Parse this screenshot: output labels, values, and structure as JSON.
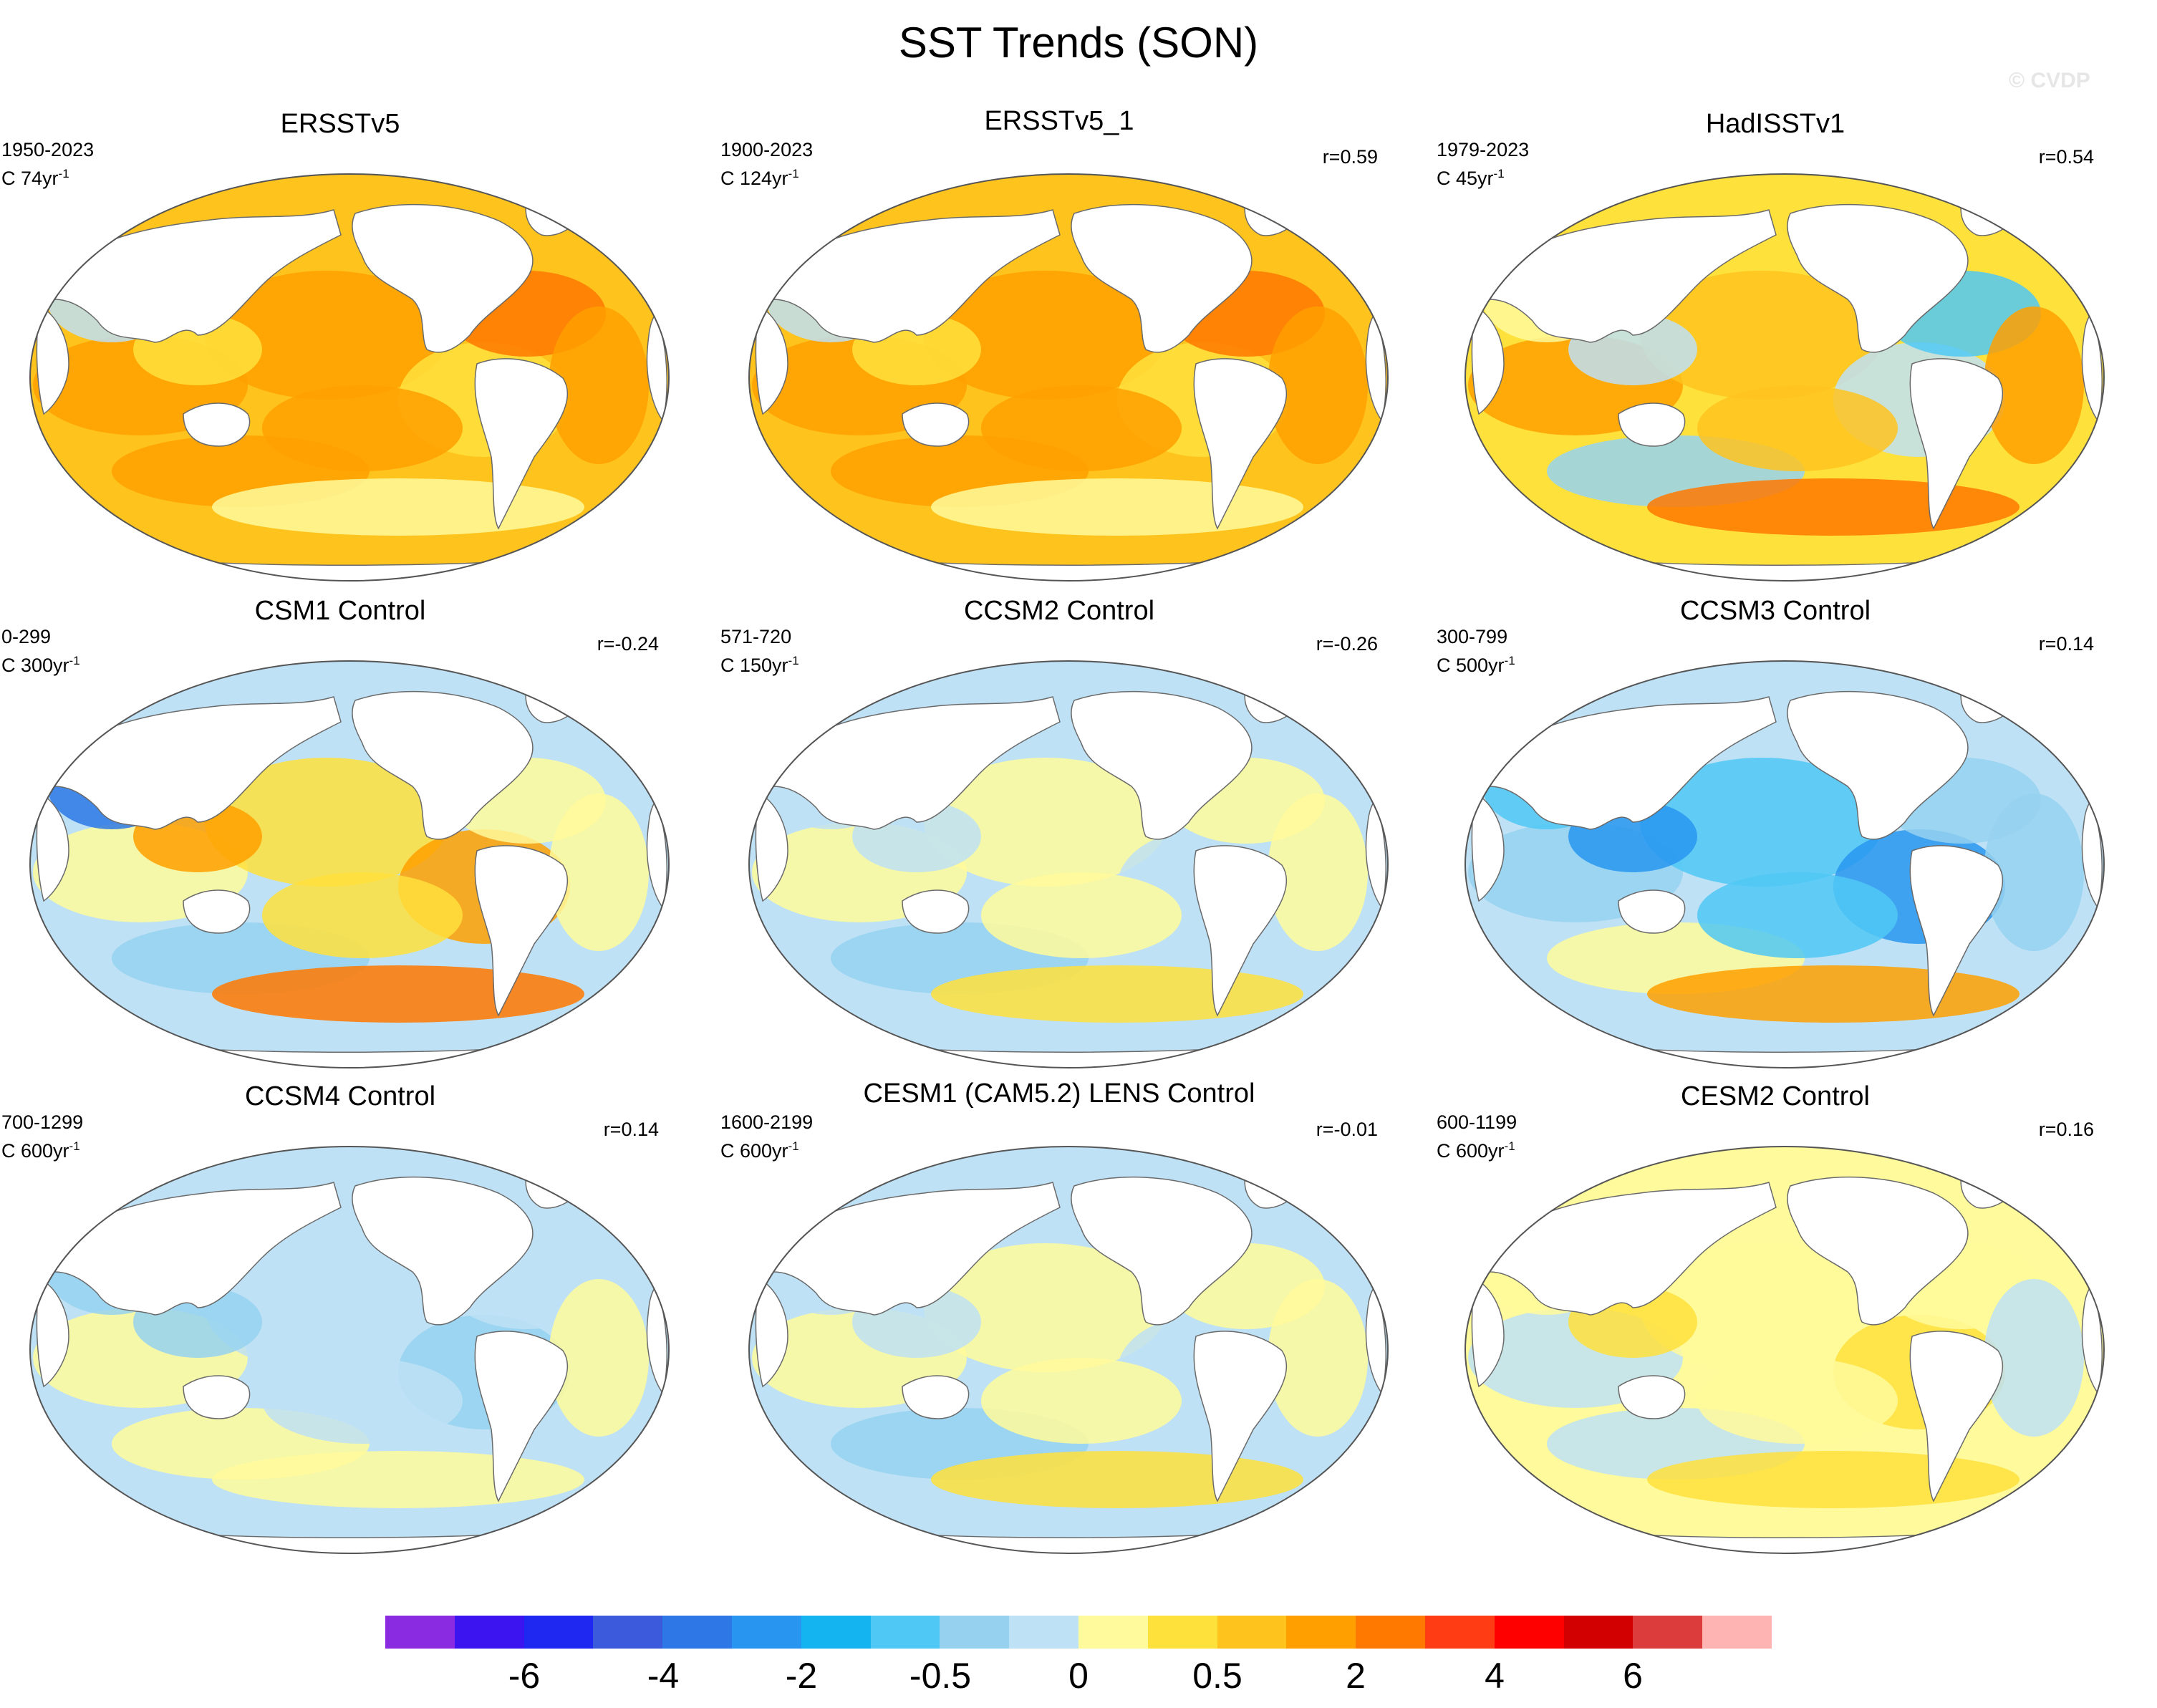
{
  "title": "SST Trends (SON)",
  "watermark": "© CVDP",
  "colors": {
    "land": "#ffffff",
    "coast": "#6a6a6a",
    "scale": [
      "#8a2be2",
      "#3c14f0",
      "#1e28f0",
      "#3c5adc",
      "#2d78e6",
      "#2896f0",
      "#14b4f0",
      "#50c8f5",
      "#96d2f0",
      "#bee1f5",
      "#fffa9b",
      "#ffe13c",
      "#ffc31e",
      "#ffa000",
      "#ff7800",
      "#ff3c14",
      "#ff0000",
      "#d20000",
      "#dc3c3c",
      "#ffb4b4"
    ]
  },
  "panels": [
    {
      "title": "ERSSTv5",
      "period": "1950-2023",
      "scale_prefix": "C 74yr",
      "scale_sup": "-1",
      "corr": "",
      "pattern": "warm"
    },
    {
      "title": "ERSSTv5_1",
      "period": "1900-2023",
      "scale_prefix": "C 124yr",
      "scale_sup": "-1",
      "corr": "r=0.59",
      "pattern": "warm"
    },
    {
      "title": "HadISSTv1",
      "period": "1979-2023",
      "scale_prefix": "C 45yr",
      "scale_sup": "-1",
      "corr": "r=0.54",
      "pattern": "mixed-warm"
    },
    {
      "title": "CSM1 Control",
      "period": "0-299",
      "scale_prefix": "C 300yr",
      "scale_sup": "-1",
      "corr": "r=-0.24",
      "pattern": "mixed"
    },
    {
      "title": "CCSM2 Control",
      "period": "571-720",
      "scale_prefix": "C 150yr",
      "scale_sup": "-1",
      "corr": "r=-0.26",
      "pattern": "weak"
    },
    {
      "title": "CCSM3 Control",
      "period": "300-799",
      "scale_prefix": "C 500yr",
      "scale_sup": "-1",
      "corr": "r=0.14",
      "pattern": "cool"
    },
    {
      "title": "CCSM4 Control",
      "period": "700-1299",
      "scale_prefix": "C 600yr",
      "scale_sup": "-1",
      "corr": "r=0.14",
      "pattern": "weak-cool"
    },
    {
      "title": "CESM1 (CAM5.2) LENS Control",
      "period": "1600-2199",
      "scale_prefix": "C 600yr",
      "scale_sup": "-1",
      "corr": "r=-0.01",
      "pattern": "weak"
    },
    {
      "title": "CESM2 Control",
      "period": "600-1199",
      "scale_prefix": "C 600yr",
      "scale_sup": "-1",
      "corr": "r=0.16",
      "pattern": "weak-warm"
    }
  ],
  "colorbar_labels": [
    "-6",
    "-4",
    "-2",
    "-0.5",
    "0",
    "0.5",
    "2",
    "4",
    "6"
  ]
}
